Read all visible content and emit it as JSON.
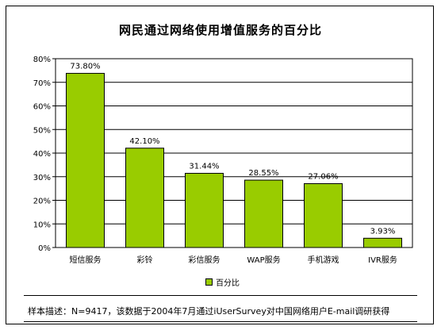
{
  "chart_data": {
    "type": "bar",
    "title": "网民通过网络使用增值服务的百分比",
    "categories": [
      "短信服务",
      "彩铃",
      "彩信服务",
      "WAP服务",
      "手机游戏",
      "IVR服务"
    ],
    "series": [
      {
        "name": "百分比",
        "values": [
          73.8,
          42.1,
          31.44,
          28.55,
          27.06,
          3.93
        ],
        "labels": [
          "73.80%",
          "42.10%",
          "31.44%",
          "28.55%",
          "27.06%",
          "3.93%"
        ],
        "color": "#99cc00"
      }
    ],
    "ylim": [
      0,
      80
    ],
    "yticks": [
      "0%",
      "10%",
      "20%",
      "30%",
      "40%",
      "50%",
      "60%",
      "70%",
      "80%"
    ],
    "xlabel": "",
    "ylabel": "",
    "grid": true,
    "legend_position": "bottom"
  },
  "footnote": "样本描述：N=9417，该数据于2004年7月通过iUserSurvey对中国网络用户E-mail调研获得"
}
